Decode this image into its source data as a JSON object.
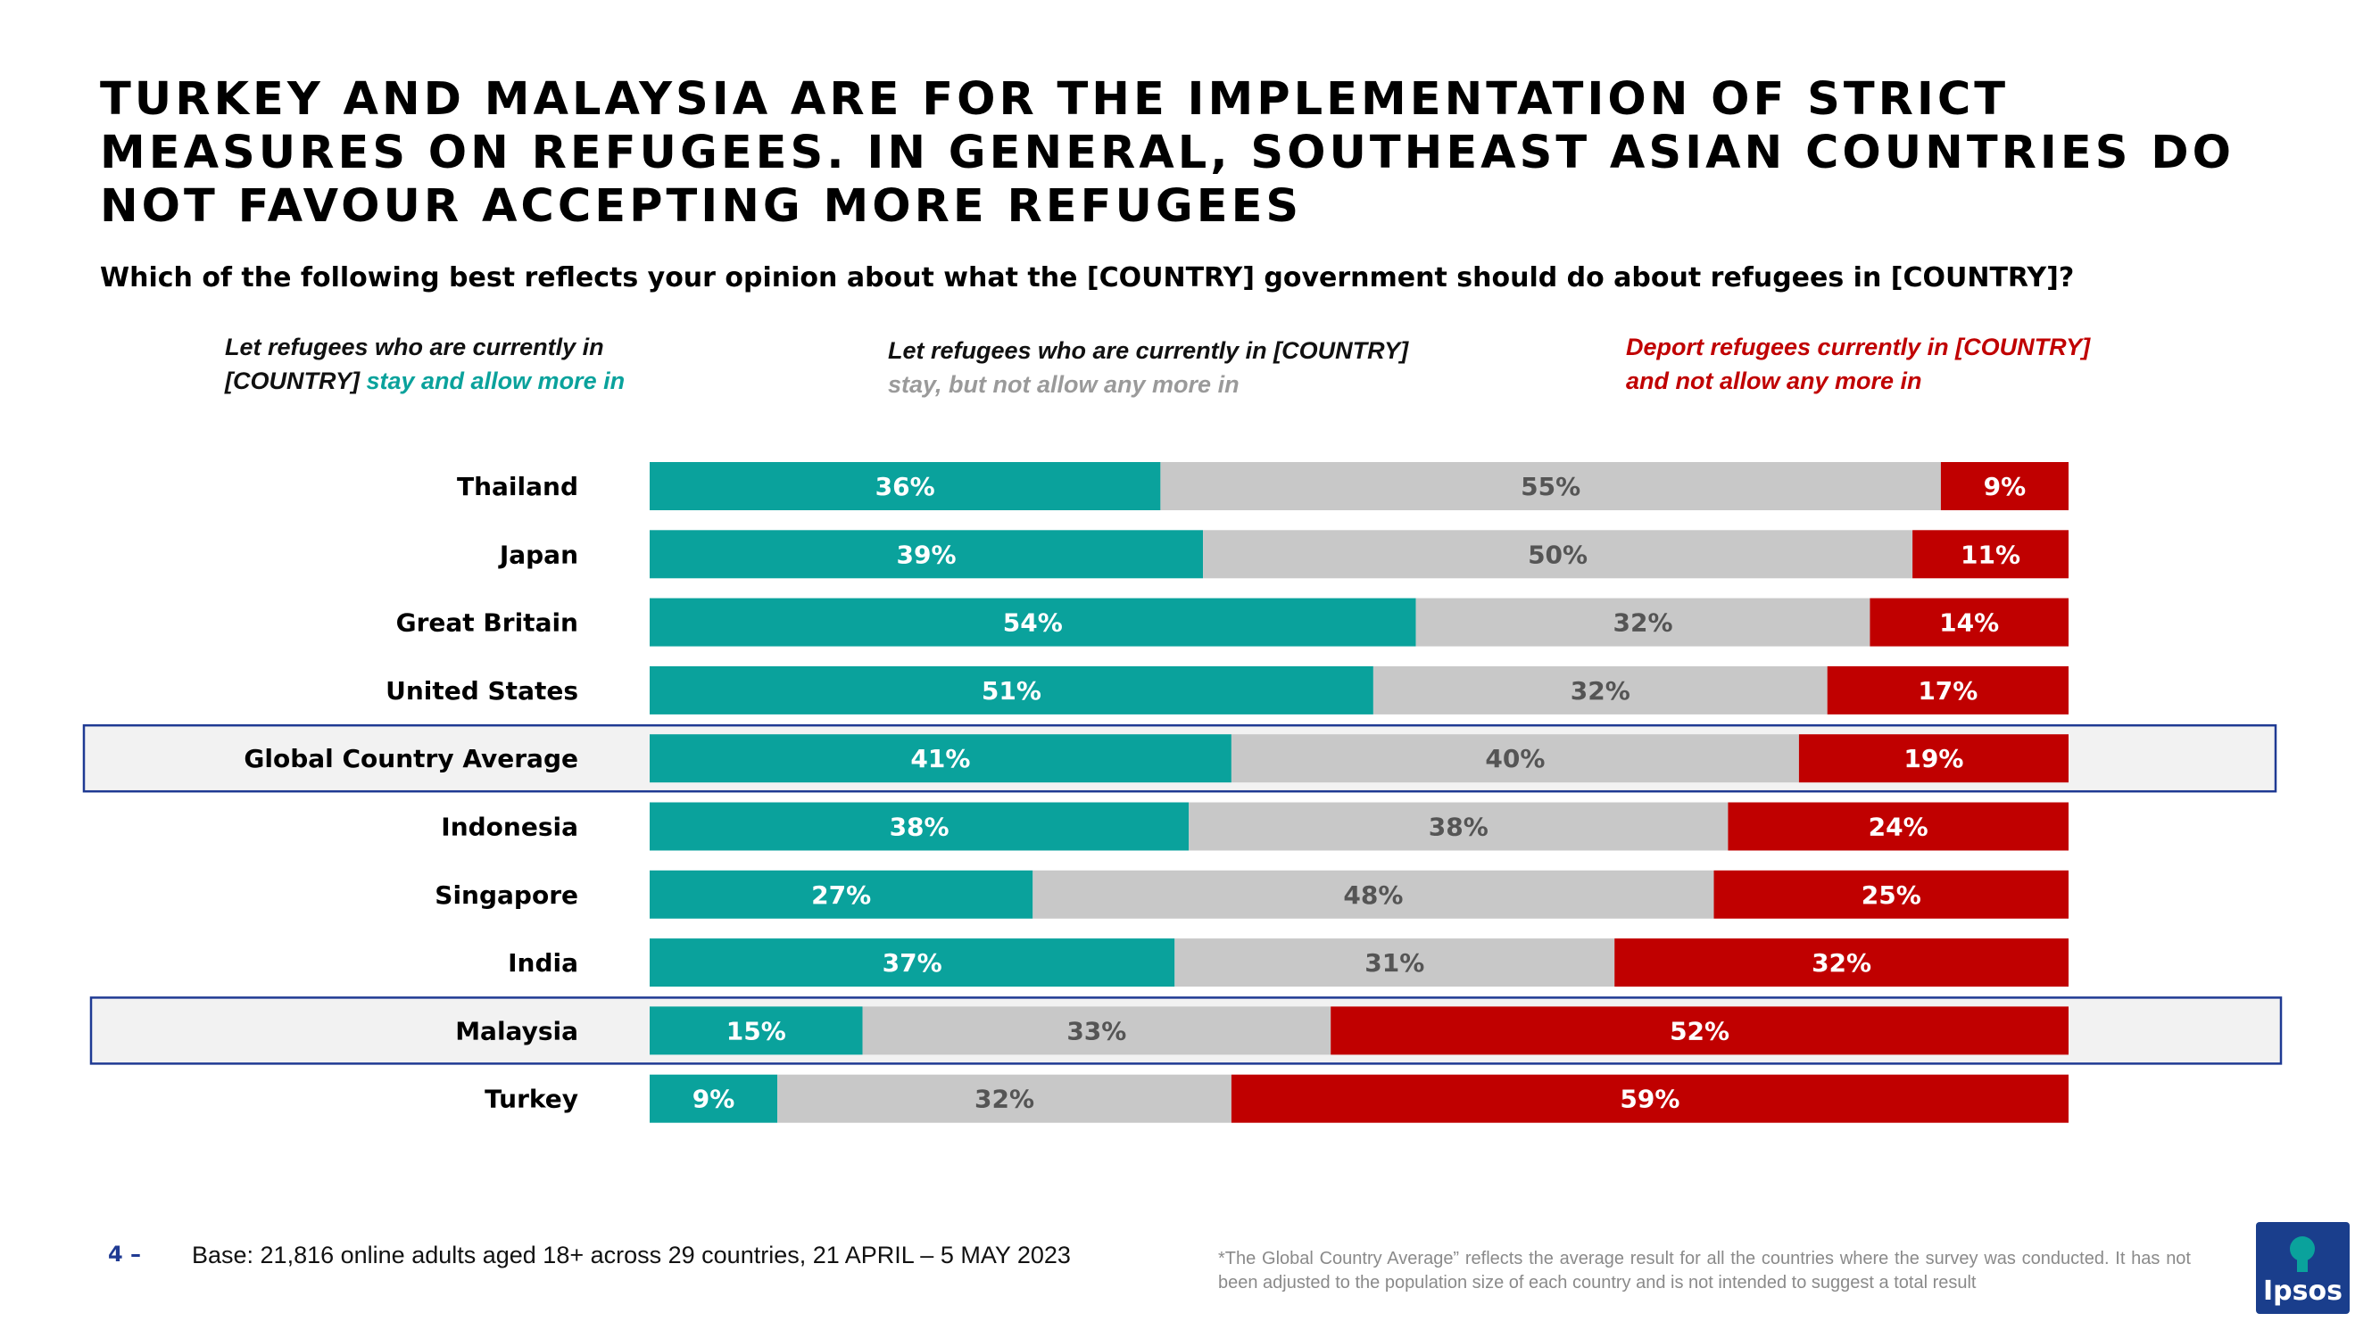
{
  "title": "TURKEY AND MALAYSIA ARE FOR THE IMPLEMENTATION OF STRICT MEASURES ON REFUGEES. IN GENERAL, SOUTHEAST ASIAN COUNTRIES DO NOT FAVOUR ACCEPTING MORE REFUGEES",
  "subtitle": "Which of the following best reflects your opinion about what the [COUNTRY] government should do about refugees in [COUNTRY]?",
  "legend": {
    "stay": {
      "line1": "Let refugees who are currently in",
      "line2a": "[COUNTRY]",
      "line2b": " stay and allow more in"
    },
    "notmore": {
      "line1": "Let refugees who are currently in [COUNTRY]",
      "line2": "stay, but not allow any more in"
    },
    "deport": {
      "line1": "Deport refugees currently in [COUNTRY]",
      "line2": "and not allow any more in"
    }
  },
  "colors": {
    "stay": "#0aa29c",
    "notmore": "#c8c8c8",
    "deport": "#c00000",
    "highlight_border": "#1f3a93",
    "highlight_fill": "#f2f2f2"
  },
  "chart_data": {
    "type": "bar",
    "orientation": "horizontal",
    "stacked": true,
    "categories": [
      "Thailand",
      "Japan",
      "Great Britain",
      "United States",
      "Global Country Average",
      "Indonesia",
      "Singapore",
      "India",
      "Malaysia",
      "Turkey"
    ],
    "series": [
      {
        "name": "Let refugees who are currently in [COUNTRY] stay and allow more in",
        "values": [
          36,
          39,
          54,
          51,
          41,
          38,
          27,
          37,
          15,
          9
        ]
      },
      {
        "name": "Let refugees who are currently in [COUNTRY] stay, but not allow any more in",
        "values": [
          55,
          50,
          32,
          32,
          40,
          38,
          48,
          31,
          33,
          32
        ]
      },
      {
        "name": "Deport refugees currently in [COUNTRY] and not allow any more in",
        "values": [
          9,
          11,
          14,
          17,
          19,
          24,
          25,
          32,
          52,
          59
        ]
      }
    ],
    "value_suffix": "%",
    "highlighted": [
      "Global Country Average",
      "Malaysia"
    ]
  },
  "footer": {
    "page_number": "4 –",
    "base": "Base: 21,816 online adults aged 18+ across 29 countries,  21 APRIL – 5 MAY 2023",
    "note": "*The Global Country Average” reflects the average result for all the countries where the survey was conducted. It has not been adjusted to the population size of each country and is not intended to suggest a total result",
    "logo": "Ipsos"
  }
}
